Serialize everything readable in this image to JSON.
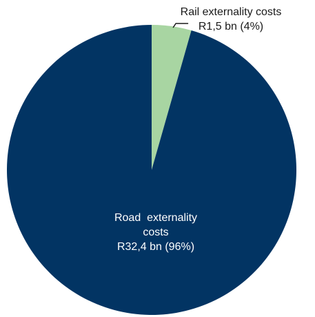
{
  "chart_data": {
    "type": "pie",
    "title": "",
    "slices": [
      {
        "label_lines": [
          "Rail externality costs",
          "R1,5 bn (4%)"
        ],
        "value": 1.5,
        "percent": 4,
        "color": "#a8d5a2"
      },
      {
        "label_lines": [
          "Road  externality",
          "costs",
          "R32,4 bn (96%)"
        ],
        "value": 32.4,
        "percent": 96,
        "color": "#023463"
      }
    ],
    "start_angle_deg": 0,
    "direction": "clockwise",
    "legend": "none",
    "labels_placement": "rail label outside top-right with leader line; road label inside slice"
  }
}
